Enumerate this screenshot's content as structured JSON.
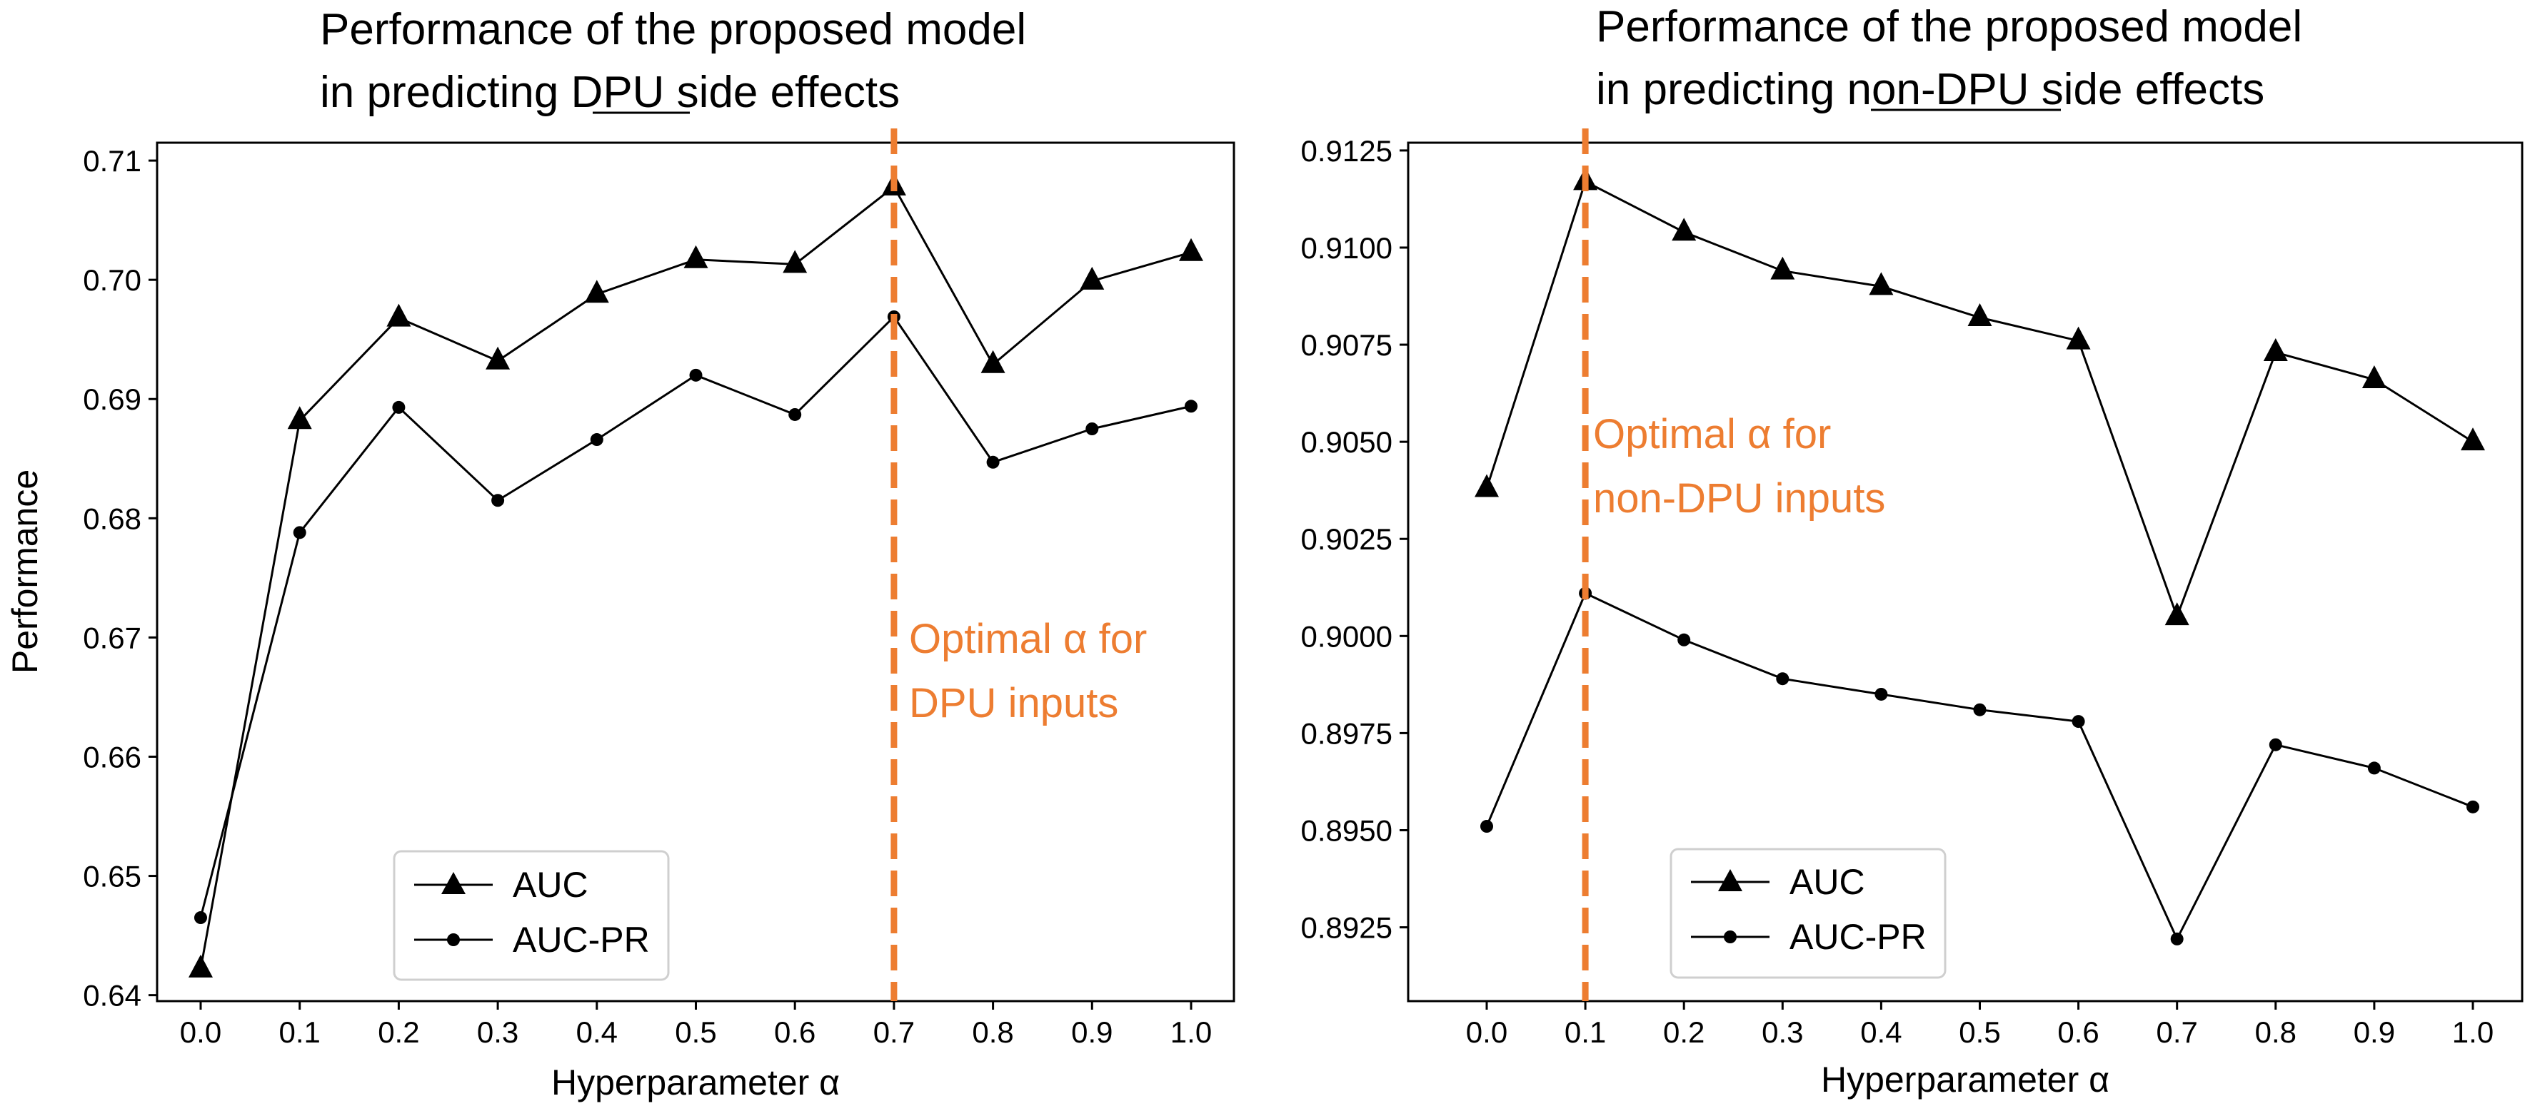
{
  "chart_data": [
    {
      "type": "line",
      "title_line1": "Performance of the proposed model",
      "title_line2_prefix": "in predicting ",
      "title_line2_underlined": "DPU",
      "title_line2_suffix": " side effects",
      "xlabel": "Hyperparameter α",
      "ylabel": "Performance",
      "x": [
        0.0,
        0.1,
        0.2,
        0.3,
        0.4,
        0.5,
        0.6,
        0.7,
        0.8,
        0.9,
        1.0
      ],
      "x_tick_labels": [
        "0.0",
        "0.1",
        "0.2",
        "0.3",
        "0.4",
        "0.5",
        "0.6",
        "0.7",
        "0.8",
        "0.9",
        "1.0"
      ],
      "ylim": [
        0.6395,
        0.7115
      ],
      "y_ticks": [
        0.64,
        0.65,
        0.66,
        0.67,
        0.68,
        0.69,
        0.7,
        0.71
      ],
      "y_tick_labels": [
        "0.64",
        "0.65",
        "0.66",
        "0.67",
        "0.68",
        "0.69",
        "0.70",
        "0.71"
      ],
      "series": [
        {
          "name": "AUC",
          "marker": "triangle",
          "values": [
            0.6422,
            0.6882,
            0.6968,
            0.6932,
            0.6988,
            0.7017,
            0.7013,
            0.7078,
            0.6929,
            0.6999,
            0.7023
          ]
        },
        {
          "name": "AUC-PR",
          "marker": "circle",
          "values": [
            0.6465,
            0.6788,
            0.6893,
            0.6815,
            0.6866,
            0.692,
            0.6887,
            0.6969,
            0.6847,
            0.6875,
            0.6894
          ]
        }
      ],
      "vline_x": 0.7,
      "annotation_line1": "Optimal α for",
      "annotation_line2": "DPU inputs",
      "legend_loc": "lower-left"
    },
    {
      "type": "line",
      "title_line1": "Performance of the proposed model",
      "title_line2_prefix": "in predicting ",
      "title_line2_underlined": "non-DPU",
      "title_line2_suffix": " side effects",
      "xlabel": "Hyperparameter α",
      "ylabel": "",
      "x": [
        0.0,
        0.1,
        0.2,
        0.3,
        0.4,
        0.5,
        0.6,
        0.7,
        0.8,
        0.9,
        1.0
      ],
      "x_tick_labels": [
        "0.0",
        "0.1",
        "0.2",
        "0.3",
        "0.4",
        "0.5",
        "0.6",
        "0.7",
        "0.8",
        "0.9",
        "1.0"
      ],
      "ylim": [
        0.8906,
        0.9127
      ],
      "y_ticks": [
        0.8925,
        0.895,
        0.8975,
        0.9,
        0.9025,
        0.905,
        0.9075,
        0.91,
        0.9125
      ],
      "y_tick_labels": [
        "0.8925",
        "0.8950",
        "0.8975",
        "0.9000",
        "0.9025",
        "0.9050",
        "0.9075",
        "0.9100",
        "0.9125"
      ],
      "series": [
        {
          "name": "AUC",
          "marker": "triangle",
          "values": [
            0.9038,
            0.9117,
            0.9104,
            0.9094,
            0.909,
            0.9082,
            0.9076,
            0.9005,
            0.9073,
            0.9066,
            0.905
          ]
        },
        {
          "name": "AUC-PR",
          "marker": "circle",
          "values": [
            0.8951,
            0.9011,
            0.8999,
            0.8989,
            0.8985,
            0.8981,
            0.8978,
            0.8922,
            0.8972,
            0.8966,
            0.8956
          ]
        }
      ],
      "vline_x": 0.1,
      "annotation_line1": "Optimal α for",
      "annotation_line2": "non-DPU inputs",
      "legend_loc": "lower-left"
    }
  ],
  "colors": {
    "line": "#000000",
    "optimal_marker": "#ED7D31",
    "background": "#ffffff"
  }
}
